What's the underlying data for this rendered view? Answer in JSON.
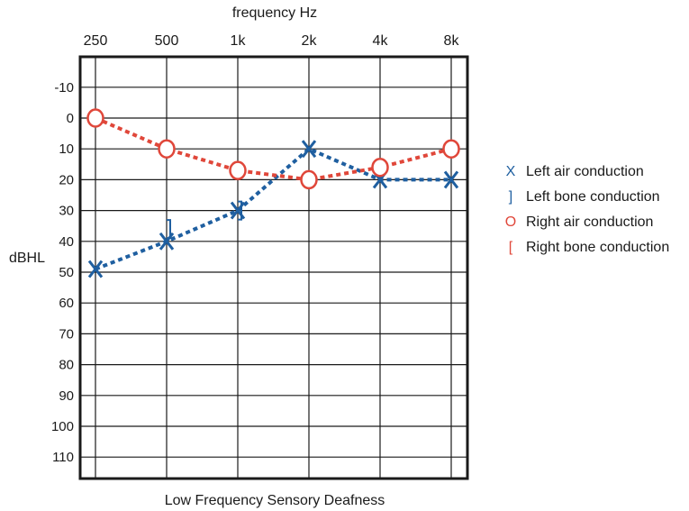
{
  "chart_data": {
    "type": "line",
    "title": "Low Frequency Sensory Deafness",
    "xlabel": "frequency Hz",
    "ylabel": "dBHL",
    "categories": [
      "250",
      "500",
      "1k",
      "2k",
      "4k",
      "8k"
    ],
    "y_ticks": [
      "-10",
      "0",
      "10",
      "20",
      "30",
      "40",
      "50",
      "60",
      "70",
      "80",
      "90",
      "100",
      "110"
    ],
    "ylim": [
      -20,
      115
    ],
    "y_inverted": true,
    "grid": true,
    "legend_position": "right",
    "series": [
      {
        "name": "Left air conduction",
        "symbol": "X",
        "color": "#1f5fa0",
        "values": [
          49,
          40,
          30,
          10,
          20,
          20
        ]
      },
      {
        "name": "Left bone conduction",
        "symbol": "]",
        "color": "#1f5fa0",
        "values": [
          null,
          36,
          30,
          null,
          null,
          null
        ]
      },
      {
        "name": "Right air conduction",
        "symbol": "O",
        "color": "#e0473a",
        "values": [
          0,
          10,
          17,
          20,
          16,
          10
        ]
      },
      {
        "name": "Right bone conduction",
        "symbol": "[",
        "color": "#e0473a",
        "values": [
          null,
          null,
          null,
          null,
          null,
          null
        ]
      }
    ]
  }
}
